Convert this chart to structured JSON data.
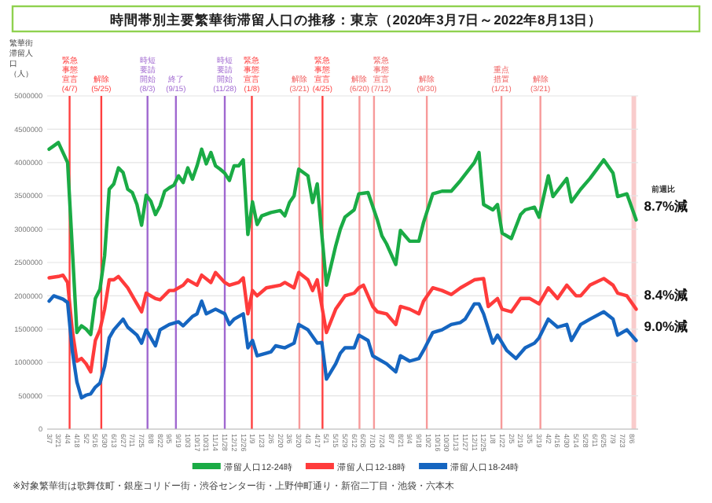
{
  "chart_data": {
    "type": "line",
    "title": "時間帯別主要繁華街滞留人口の推移：東京（2020年3月7日～2022年8月13日）",
    "ylabel": "繁華街滞留人口（人）",
    "xlim": [
      "2020-03-04",
      "2022-08-16"
    ],
    "ylim": [
      0,
      5000000
    ],
    "yticks": [
      0,
      500000,
      1000000,
      1500000,
      2000000,
      2500000,
      3000000,
      3500000,
      4000000,
      4500000,
      5000000
    ],
    "xticks": [
      {
        "value": "2020-03-07",
        "label": "3/7"
      },
      {
        "value": "2020-03-21",
        "label": "3/21"
      },
      {
        "value": "2020-04-04",
        "label": "4/4"
      },
      {
        "value": "2020-04-18",
        "label": "4/18"
      },
      {
        "value": "2020-05-02",
        "label": "5/2"
      },
      {
        "value": "2020-05-16",
        "label": "5/16"
      },
      {
        "value": "2020-05-30",
        "label": "5/30"
      },
      {
        "value": "2020-06-13",
        "label": "6/13"
      },
      {
        "value": "2020-06-27",
        "label": "6/27"
      },
      {
        "value": "2020-07-11",
        "label": "7/11"
      },
      {
        "value": "2020-07-25",
        "label": "7/25"
      },
      {
        "value": "2020-08-08",
        "label": "8/8"
      },
      {
        "value": "2020-08-22",
        "label": "8/22"
      },
      {
        "value": "2020-09-05",
        "label": "9/5"
      },
      {
        "value": "2020-09-19",
        "label": "9/19"
      },
      {
        "value": "2020-10-03",
        "label": "10/3"
      },
      {
        "value": "2020-10-17",
        "label": "10/17"
      },
      {
        "value": "2020-10-31",
        "label": "10/31"
      },
      {
        "value": "2020-11-14",
        "label": "11/14"
      },
      {
        "value": "2020-11-28",
        "label": "11/28"
      },
      {
        "value": "2020-12-12",
        "label": "12/12"
      },
      {
        "value": "2020-12-26",
        "label": "12/26"
      },
      {
        "value": "2021-01-09",
        "label": "1/9"
      },
      {
        "value": "2021-01-23",
        "label": "1/23"
      },
      {
        "value": "2021-02-06",
        "label": "2/6"
      },
      {
        "value": "2021-02-20",
        "label": "2/20"
      },
      {
        "value": "2021-03-06",
        "label": "3/6"
      },
      {
        "value": "2021-03-20",
        "label": "3/20"
      },
      {
        "value": "2021-04-03",
        "label": "4/3"
      },
      {
        "value": "2021-04-17",
        "label": "4/17"
      },
      {
        "value": "2021-05-01",
        "label": "5/1"
      },
      {
        "value": "2021-05-15",
        "label": "5/15"
      },
      {
        "value": "2021-05-29",
        "label": "5/29"
      },
      {
        "value": "2021-06-12",
        "label": "6/12"
      },
      {
        "value": "2021-06-26",
        "label": "6/26"
      },
      {
        "value": "2021-07-10",
        "label": "7/10"
      },
      {
        "value": "2021-07-24",
        "label": "7/24"
      },
      {
        "value": "2021-08-07",
        "label": "8/7"
      },
      {
        "value": "2021-08-21",
        "label": "8/21"
      },
      {
        "value": "2021-09-04",
        "label": "9/4"
      },
      {
        "value": "2021-09-18",
        "label": "9/18"
      },
      {
        "value": "2021-10-02",
        "label": "10/2"
      },
      {
        "value": "2021-10-16",
        "label": "10/16"
      },
      {
        "value": "2021-10-30",
        "label": "10/30"
      },
      {
        "value": "2021-11-13",
        "label": "11/13"
      },
      {
        "value": "2021-11-27",
        "label": "11/27"
      },
      {
        "value": "2021-12-11",
        "label": "12/11"
      },
      {
        "value": "2021-12-25",
        "label": "12/25"
      },
      {
        "value": "2022-01-08",
        "label": "1/8"
      },
      {
        "value": "2022-01-22",
        "label": "1/22"
      },
      {
        "value": "2022-02-05",
        "label": "2/5"
      },
      {
        "value": "2022-02-19",
        "label": "2/19"
      },
      {
        "value": "2022-03-05",
        "label": "3/5"
      },
      {
        "value": "2022-03-19",
        "label": "3/19"
      },
      {
        "value": "2022-04-02",
        "label": "4/2"
      },
      {
        "value": "2022-04-16",
        "label": "4/16"
      },
      {
        "value": "2022-04-30",
        "label": "4/30"
      },
      {
        "value": "2022-05-14",
        "label": "5/14"
      },
      {
        "value": "2022-05-28",
        "label": "5/28"
      },
      {
        "value": "2022-06-11",
        "label": "6/11"
      },
      {
        "value": "2022-06-25",
        "label": "6/25"
      },
      {
        "value": "2022-07-09",
        "label": "7/9"
      },
      {
        "value": "2022-07-23",
        "label": "7/23"
      },
      {
        "value": "2022-08-06",
        "label": "8/6"
      }
    ],
    "grid": "y",
    "legend": "bottom",
    "line_style": "solid",
    "series": [
      {
        "name": "滞留人口12-24時",
        "color": "#1aab45",
        "x": [
          "2020-03-07",
          "2020-03-14",
          "2020-03-21",
          "2020-03-28",
          "2020-04-04",
          "2020-04-18",
          "2020-04-25",
          "2020-05-02",
          "2020-05-09",
          "2020-05-16",
          "2020-05-23",
          "2020-05-30",
          "2020-06-06",
          "2020-06-13",
          "2020-06-20",
          "2020-06-27",
          "2020-07-04",
          "2020-07-11",
          "2020-07-18",
          "2020-07-25",
          "2020-08-01",
          "2020-08-08",
          "2020-08-15",
          "2020-08-22",
          "2020-08-29",
          "2020-09-05",
          "2020-09-12",
          "2020-09-19",
          "2020-09-26",
          "2020-10-03",
          "2020-10-10",
          "2020-10-17",
          "2020-10-24",
          "2020-10-31",
          "2020-11-07",
          "2020-11-14",
          "2020-11-21",
          "2020-11-28",
          "2020-12-05",
          "2020-12-12",
          "2020-12-19",
          "2020-12-26",
          "2021-01-02",
          "2021-01-09",
          "2021-01-16",
          "2021-01-23",
          "2021-02-06",
          "2021-02-20",
          "2021-02-27",
          "2021-03-06",
          "2021-03-13",
          "2021-03-20",
          "2021-04-03",
          "2021-04-10",
          "2021-04-17",
          "2021-05-01",
          "2021-05-15",
          "2021-05-22",
          "2021-05-29",
          "2021-06-12",
          "2021-06-19",
          "2021-07-03",
          "2021-07-17",
          "2021-07-24",
          "2021-07-31",
          "2021-08-14",
          "2021-08-21",
          "2021-09-04",
          "2021-09-18",
          "2021-09-25",
          "2021-10-09",
          "2021-10-23",
          "2021-11-06",
          "2021-11-20",
          "2021-12-11",
          "2021-12-18",
          "2021-12-25",
          "2022-01-08",
          "2022-01-15",
          "2022-01-22",
          "2022-02-05",
          "2022-02-19",
          "2022-02-26",
          "2022-03-12",
          "2022-03-19",
          "2022-04-02",
          "2022-04-09",
          "2022-04-30",
          "2022-05-07",
          "2022-05-21",
          "2022-06-04",
          "2022-06-25",
          "2022-07-09",
          "2022-07-16",
          "2022-07-30",
          "2022-08-13"
        ],
        "values": [
          4200000,
          4250000,
          4300000,
          4150000,
          4000000,
          1450000,
          1550000,
          1500000,
          1420000,
          1960000,
          2100000,
          2600000,
          3600000,
          3680000,
          3920000,
          3850000,
          3600000,
          3550000,
          3370000,
          3060000,
          3510000,
          3420000,
          3220000,
          3350000,
          3570000,
          3620000,
          3660000,
          3800000,
          3700000,
          3920000,
          3750000,
          3950000,
          4200000,
          3980000,
          4150000,
          3950000,
          3900000,
          3840000,
          3730000,
          3950000,
          3950000,
          4040000,
          2920000,
          3410000,
          3070000,
          3200000,
          3250000,
          3280000,
          3200000,
          3400000,
          3500000,
          3900000,
          3800000,
          3400000,
          3680000,
          2160000,
          2750000,
          3000000,
          3180000,
          3290000,
          3530000,
          3550000,
          3140000,
          2900000,
          2780000,
          2470000,
          2980000,
          2820000,
          2820000,
          3100000,
          3530000,
          3570000,
          3570000,
          3730000,
          4000000,
          4150000,
          3370000,
          3290000,
          3370000,
          2940000,
          2860000,
          3220000,
          3290000,
          3330000,
          3180000,
          3800000,
          3490000,
          3760000,
          3410000,
          3600000,
          3760000,
          4040000,
          3840000,
          3490000,
          3530000,
          3140000
        ]
      },
      {
        "name": "滞留人口12-18時",
        "color": "#ff3b3b",
        "x": [
          "2020-03-07",
          "2020-03-21",
          "2020-03-28",
          "2020-04-04",
          "2020-04-11",
          "2020-04-18",
          "2020-04-25",
          "2020-05-02",
          "2020-05-09",
          "2020-05-16",
          "2020-05-23",
          "2020-05-30",
          "2020-06-06",
          "2020-06-13",
          "2020-06-20",
          "2020-07-04",
          "2020-07-11",
          "2020-07-25",
          "2020-08-01",
          "2020-08-15",
          "2020-08-22",
          "2020-09-05",
          "2020-09-12",
          "2020-09-26",
          "2020-10-03",
          "2020-10-17",
          "2020-10-24",
          "2020-11-07",
          "2020-11-14",
          "2020-11-28",
          "2020-12-05",
          "2020-12-19",
          "2020-12-26",
          "2021-01-02",
          "2021-01-09",
          "2021-01-16",
          "2021-01-30",
          "2021-02-20",
          "2021-02-27",
          "2021-03-13",
          "2021-03-20",
          "2021-04-03",
          "2021-04-10",
          "2021-04-17",
          "2021-05-01",
          "2021-05-15",
          "2021-05-29",
          "2021-06-12",
          "2021-06-19",
          "2021-06-26",
          "2021-07-10",
          "2021-07-17",
          "2021-07-31",
          "2021-08-14",
          "2021-08-21",
          "2021-09-04",
          "2021-09-18",
          "2021-09-25",
          "2021-10-09",
          "2021-10-23",
          "2021-11-06",
          "2021-11-20",
          "2021-12-11",
          "2021-12-25",
          "2022-01-01",
          "2022-01-15",
          "2022-01-22",
          "2022-02-05",
          "2022-02-19",
          "2022-03-05",
          "2022-03-19",
          "2022-04-02",
          "2022-04-16",
          "2022-04-30",
          "2022-05-14",
          "2022-05-21",
          "2022-06-04",
          "2022-06-25",
          "2022-07-09",
          "2022-07-16",
          "2022-07-30",
          "2022-08-13"
        ],
        "values": [
          2270000,
          2290000,
          2310000,
          2200000,
          1490000,
          1020000,
          1060000,
          980000,
          860000,
          1330000,
          1490000,
          1800000,
          2240000,
          2240000,
          2290000,
          2120000,
          2000000,
          1760000,
          2040000,
          1960000,
          1940000,
          2080000,
          2080000,
          2160000,
          2240000,
          2160000,
          2310000,
          2200000,
          2350000,
          2200000,
          2160000,
          2200000,
          2270000,
          1730000,
          2080000,
          2000000,
          2120000,
          2160000,
          2200000,
          2120000,
          2350000,
          2240000,
          2080000,
          2240000,
          1450000,
          1800000,
          2000000,
          2040000,
          2120000,
          2160000,
          1840000,
          1760000,
          1730000,
          1570000,
          1840000,
          1800000,
          1730000,
          1920000,
          2120000,
          2080000,
          2020000,
          2120000,
          2240000,
          2260000,
          1840000,
          1960000,
          1800000,
          1760000,
          1960000,
          1960000,
          1880000,
          2120000,
          1960000,
          2160000,
          2000000,
          2000000,
          2160000,
          2260000,
          2160000,
          2040000,
          2000000,
          1800000
        ]
      },
      {
        "name": "滞留人口18-24時",
        "color": "#1565c0",
        "x": [
          "2020-03-07",
          "2020-03-14",
          "2020-03-28",
          "2020-04-04",
          "2020-04-11",
          "2020-04-18",
          "2020-04-25",
          "2020-05-02",
          "2020-05-09",
          "2020-05-16",
          "2020-05-23",
          "2020-05-30",
          "2020-06-06",
          "2020-06-13",
          "2020-06-27",
          "2020-07-04",
          "2020-07-18",
          "2020-07-25",
          "2020-08-01",
          "2020-08-15",
          "2020-08-22",
          "2020-09-05",
          "2020-09-19",
          "2020-09-26",
          "2020-10-10",
          "2020-10-17",
          "2020-10-24",
          "2020-10-31",
          "2020-11-14",
          "2020-11-28",
          "2020-12-05",
          "2020-12-12",
          "2020-12-26",
          "2021-01-02",
          "2021-01-09",
          "2021-01-16",
          "2021-01-30",
          "2021-02-06",
          "2021-02-13",
          "2021-02-27",
          "2021-03-13",
          "2021-03-20",
          "2021-04-03",
          "2021-04-17",
          "2021-04-24",
          "2021-05-01",
          "2021-05-15",
          "2021-05-22",
          "2021-05-29",
          "2021-06-12",
          "2021-06-19",
          "2021-07-03",
          "2021-07-10",
          "2021-07-31",
          "2021-08-14",
          "2021-08-21",
          "2021-09-04",
          "2021-09-18",
          "2021-09-25",
          "2021-10-09",
          "2021-10-23",
          "2021-11-06",
          "2021-11-20",
          "2021-11-27",
          "2021-12-11",
          "2021-12-18",
          "2021-12-25",
          "2022-01-08",
          "2022-01-15",
          "2022-01-29",
          "2022-02-12",
          "2022-02-26",
          "2022-03-12",
          "2022-03-19",
          "2022-04-02",
          "2022-04-16",
          "2022-04-30",
          "2022-05-07",
          "2022-05-21",
          "2022-06-04",
          "2022-06-25",
          "2022-07-09",
          "2022-07-16",
          "2022-07-30",
          "2022-08-13"
        ],
        "values": [
          1920000,
          2000000,
          1950000,
          1900000,
          1180000,
          710000,
          470000,
          510000,
          530000,
          630000,
          690000,
          940000,
          1370000,
          1490000,
          1650000,
          1530000,
          1410000,
          1290000,
          1490000,
          1250000,
          1490000,
          1570000,
          1610000,
          1550000,
          1690000,
          1730000,
          1920000,
          1730000,
          1800000,
          1730000,
          1570000,
          1650000,
          1730000,
          1220000,
          1330000,
          1100000,
          1140000,
          1160000,
          1250000,
          1220000,
          1290000,
          1570000,
          1490000,
          1290000,
          1300000,
          750000,
          980000,
          1140000,
          1220000,
          1220000,
          1410000,
          1330000,
          1100000,
          980000,
          860000,
          1100000,
          1020000,
          1060000,
          1180000,
          1450000,
          1490000,
          1570000,
          1600000,
          1650000,
          1880000,
          1880000,
          1730000,
          1290000,
          1410000,
          1180000,
          1060000,
          1220000,
          1290000,
          1370000,
          1650000,
          1530000,
          1570000,
          1330000,
          1570000,
          1650000,
          1760000,
          1650000,
          1410000,
          1490000,
          1330000
        ]
      }
    ],
    "ref_lines": [
      {
        "axis": "x",
        "value": "2020-04-07",
        "label": "緊急事態宣言(4/7)",
        "color": "#ff4040"
      },
      {
        "axis": "x",
        "value": "2020-05-25",
        "label": "解除(5/25)",
        "color": "#ff4040"
      },
      {
        "axis": "x",
        "value": "2020-08-03",
        "label": "時短要請開始(8/3)",
        "color": "#a068d0"
      },
      {
        "axis": "x",
        "value": "2020-09-15",
        "label": "終了(9/15)",
        "color": "#a068d0"
      },
      {
        "axis": "x",
        "value": "2020-11-28",
        "label": "時短要請開始(11/28)",
        "color": "#a068d0"
      },
      {
        "axis": "x",
        "value": "2021-01-08",
        "label": "緊急事態宣言(1/8)",
        "color": "#ff4040"
      },
      {
        "axis": "x",
        "value": "2021-03-21",
        "label": "解除(3/21)",
        "color": "#f79a9a"
      },
      {
        "axis": "x",
        "value": "2021-04-25",
        "label": "緊急事態宣言(4/25)",
        "color": "#ff4040"
      },
      {
        "axis": "x",
        "value": "2021-06-20",
        "label": "解除(6/20)",
        "color": "#f79a9a"
      },
      {
        "axis": "x",
        "value": "2021-07-12",
        "label": "緊急事態宣言(7/12)",
        "color": "#f79a9a"
      },
      {
        "axis": "x",
        "value": "2021-09-30",
        "label": "解除(9/30)",
        "color": "#f79a9a"
      },
      {
        "axis": "x",
        "value": "2022-01-21",
        "label": "重点措置(1/21)",
        "color": "#f79a9a"
      },
      {
        "axis": "x",
        "value": "2022-03-21",
        "label": "解除(3/21)",
        "color": "#f79a9a"
      }
    ],
    "bands": [
      {
        "axis": "x",
        "from": "2022-08-06",
        "to": "2022-08-13",
        "color": "#f9cccc"
      }
    ],
    "annotations": [
      "前週比",
      {
        "text": "8.7%減",
        "x": "2022-08-13",
        "y": 3140000
      },
      {
        "text": "8.4%減",
        "x": "2022-08-13",
        "y": 1800000
      },
      {
        "text": "9.0%減",
        "x": "2022-08-13",
        "y": 1330000
      },
      "※対象繁華街は歌舞伎町・銀座コリドー街・渋谷センター街・上野仲町通り・新宿二丁目・池袋・六本木"
    ]
  }
}
